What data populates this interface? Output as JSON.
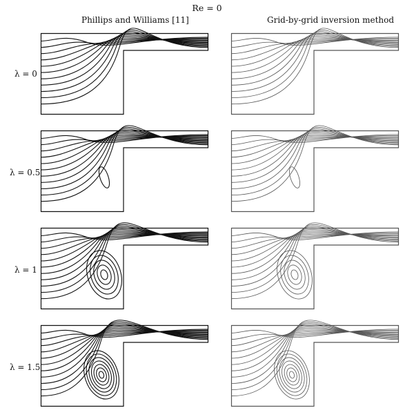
{
  "figure": {
    "title": "Re = 0",
    "columns": [
      {
        "label": "Phillips and Williams [11]",
        "line_color": "#111111"
      },
      {
        "label": "Grid-by-grid inversion method",
        "line_color": "#555555"
      }
    ],
    "rows": [
      {
        "label": "λ = 0",
        "lambda": 0
      },
      {
        "label": "λ = 0.5",
        "lambda": 0.5
      },
      {
        "label": "λ = 1",
        "lambda": 1
      },
      {
        "label": "λ = 1.5",
        "lambda": 1.5
      }
    ]
  }
}
